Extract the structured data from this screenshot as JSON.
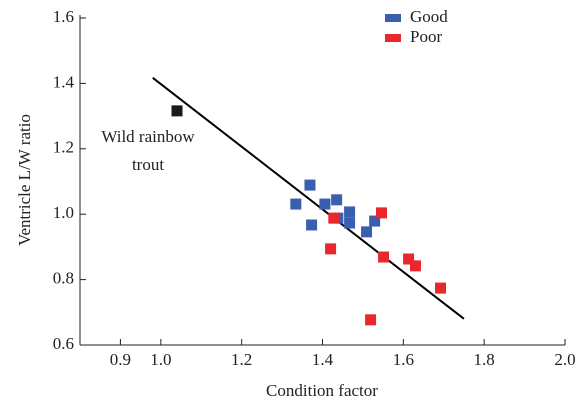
{
  "chart_data": {
    "type": "scatter",
    "xlabel": "Condition factor",
    "ylabel": "Ventricle L/W ratio",
    "xlim": [
      0.8,
      2.0
    ],
    "ylim": [
      0.6,
      1.6
    ],
    "xticks": [
      0.9,
      {
        "value": 1,
        "label": "1.0"
      },
      1.2,
      1.4,
      1.6,
      1.8,
      {
        "value": 2,
        "label": "2.0"
      }
    ],
    "yticks": [
      0.6,
      0.8,
      {
        "value": 1,
        "label": "1.0"
      },
      1.2,
      1.4,
      1.6
    ],
    "legend": "top-right",
    "series": [
      {
        "name": "Good",
        "color": "#3a5fb0",
        "x": [
          1.334,
          1.369,
          1.373,
          1.406,
          1.435,
          1.438,
          1.467,
          1.467,
          1.509,
          1.529
        ],
        "values": [
          1.031,
          1.089,
          0.967,
          1.031,
          1.044,
          0.988,
          1.007,
          0.973,
          0.946,
          0.979
        ]
      },
      {
        "name": "Poor",
        "color": "#e8282c",
        "x": [
          1.428,
          1.546,
          1.42,
          1.551,
          1.613,
          1.63,
          1.692,
          1.519
        ],
        "values": [
          0.988,
          1.004,
          0.894,
          0.869,
          0.863,
          0.842,
          0.774,
          0.677
        ]
      },
      {
        "name": "Wild rainbow trout",
        "color": "#1a1a1a",
        "x": [
          1.04
        ],
        "values": [
          1.316
        ]
      }
    ],
    "fit_line": {
      "x": [
        0.98,
        1.75
      ],
      "values": [
        1.417,
        0.68
      ],
      "color": "#000000"
    }
  }
}
